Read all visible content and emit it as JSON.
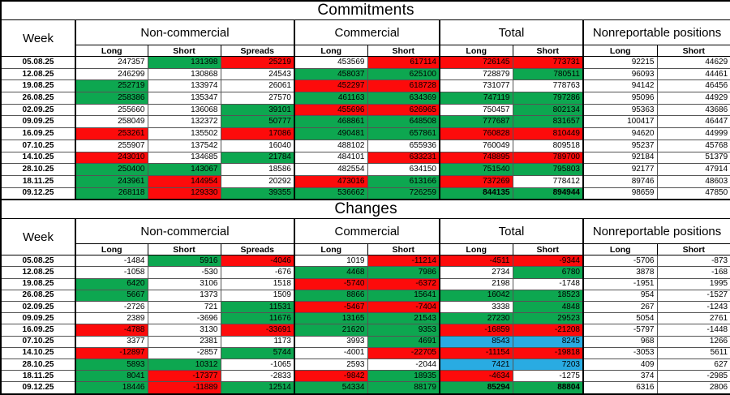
{
  "colors": {
    "green": "#0DA750",
    "red": "#FD0B0B",
    "blue": "#29ABE2",
    "border": "#000000"
  },
  "tables": [
    {
      "title": "Commitments",
      "week_header": "Week",
      "groups": [
        {
          "label": "Non-commercial",
          "cols": [
            "Long",
            "Short",
            "Spreads"
          ]
        },
        {
          "label": "Commercial",
          "cols": [
            "Long",
            "Short"
          ]
        },
        {
          "label": "Total",
          "cols": [
            "Long",
            "Short"
          ]
        },
        {
          "label": "Nonreportable positions",
          "cols": [
            "Long",
            "Short"
          ]
        }
      ],
      "rows": [
        {
          "week": "05.08.25",
          "cells": [
            {
              "v": "247357"
            },
            {
              "v": "131398",
              "bg": "green"
            },
            {
              "v": "25219",
              "bg": "red"
            },
            {
              "v": "453569"
            },
            {
              "v": "617114",
              "bg": "red"
            },
            {
              "v": "726145",
              "bg": "red"
            },
            {
              "v": "773731",
              "bg": "red"
            },
            {
              "v": "92215"
            },
            {
              "v": "44629"
            }
          ]
        },
        {
          "week": "12.08.25",
          "cells": [
            {
              "v": "246299"
            },
            {
              "v": "130868"
            },
            {
              "v": "24543"
            },
            {
              "v": "458037",
              "bg": "green"
            },
            {
              "v": "625100",
              "bg": "green"
            },
            {
              "v": "728879"
            },
            {
              "v": "780511",
              "bg": "green"
            },
            {
              "v": "96093"
            },
            {
              "v": "44461"
            }
          ]
        },
        {
          "week": "19.08.25",
          "cells": [
            {
              "v": "252719",
              "bg": "green"
            },
            {
              "v": "133974"
            },
            {
              "v": "26061"
            },
            {
              "v": "452297",
              "bg": "red"
            },
            {
              "v": "618728",
              "bg": "red"
            },
            {
              "v": "731077"
            },
            {
              "v": "778763"
            },
            {
              "v": "94142"
            },
            {
              "v": "46456"
            }
          ]
        },
        {
          "week": "26.08.25",
          "cells": [
            {
              "v": "258386",
              "bg": "green"
            },
            {
              "v": "135347"
            },
            {
              "v": "27570"
            },
            {
              "v": "461163",
              "bg": "green"
            },
            {
              "v": "634369",
              "bg": "green"
            },
            {
              "v": "747119",
              "bg": "green"
            },
            {
              "v": "797286",
              "bg": "green"
            },
            {
              "v": "95096"
            },
            {
              "v": "44929"
            }
          ]
        },
        {
          "week": "02.09.25",
          "cells": [
            {
              "v": "255660"
            },
            {
              "v": "136068"
            },
            {
              "v": "39101",
              "bg": "green"
            },
            {
              "v": "455696",
              "bg": "red"
            },
            {
              "v": "626965",
              "bg": "red"
            },
            {
              "v": "750457"
            },
            {
              "v": "802134",
              "bg": "green"
            },
            {
              "v": "95363"
            },
            {
              "v": "43686"
            }
          ]
        },
        {
          "week": "09.09.25",
          "cells": [
            {
              "v": "258049"
            },
            {
              "v": "132372"
            },
            {
              "v": "50777",
              "bg": "green"
            },
            {
              "v": "468861",
              "bg": "green"
            },
            {
              "v": "648508",
              "bg": "green"
            },
            {
              "v": "777687",
              "bg": "green"
            },
            {
              "v": "831657",
              "bg": "green"
            },
            {
              "v": "100417"
            },
            {
              "v": "46447"
            }
          ]
        },
        {
          "week": "16.09.25",
          "cells": [
            {
              "v": "253261",
              "bg": "red"
            },
            {
              "v": "135502"
            },
            {
              "v": "17086",
              "bg": "red"
            },
            {
              "v": "490481",
              "bg": "green"
            },
            {
              "v": "657861",
              "bg": "green"
            },
            {
              "v": "760828",
              "bg": "red"
            },
            {
              "v": "810449",
              "bg": "red"
            },
            {
              "v": "94620"
            },
            {
              "v": "44999"
            }
          ]
        },
        {
          "week": "07.10.25",
          "cells": [
            {
              "v": "255907"
            },
            {
              "v": "137542"
            },
            {
              "v": "16040"
            },
            {
              "v": "488102"
            },
            {
              "v": "655936"
            },
            {
              "v": "760049"
            },
            {
              "v": "809518"
            },
            {
              "v": "95237"
            },
            {
              "v": "45768"
            }
          ]
        },
        {
          "week": "14.10.25",
          "cells": [
            {
              "v": "243010",
              "bg": "red"
            },
            {
              "v": "134685"
            },
            {
              "v": "21784",
              "bg": "green"
            },
            {
              "v": "484101"
            },
            {
              "v": "633231",
              "bg": "red"
            },
            {
              "v": "748895",
              "bg": "red"
            },
            {
              "v": "789700",
              "bg": "red"
            },
            {
              "v": "92184"
            },
            {
              "v": "51379"
            }
          ]
        },
        {
          "week": "28.10.25",
          "cells": [
            {
              "v": "250400",
              "bg": "green"
            },
            {
              "v": "143067",
              "bg": "green"
            },
            {
              "v": "18586"
            },
            {
              "v": "482554"
            },
            {
              "v": "634150"
            },
            {
              "v": "751540",
              "bg": "green"
            },
            {
              "v": "795803",
              "bg": "green"
            },
            {
              "v": "92177"
            },
            {
              "v": "47914"
            }
          ]
        },
        {
          "week": "18.11.25",
          "cells": [
            {
              "v": "243961",
              "bg": "green"
            },
            {
              "v": "144954",
              "bg": "red"
            },
            {
              "v": "20292"
            },
            {
              "v": "473016",
              "bg": "red"
            },
            {
              "v": "613166",
              "bg": "green"
            },
            {
              "v": "737269",
              "bg": "red"
            },
            {
              "v": "778412"
            },
            {
              "v": "89746"
            },
            {
              "v": "48603"
            }
          ]
        },
        {
          "week": "09.12.25",
          "cells": [
            {
              "v": "268118",
              "bg": "green"
            },
            {
              "v": "129330",
              "bg": "red"
            },
            {
              "v": "39355",
              "bg": "green"
            },
            {
              "v": "536662",
              "bg": "green"
            },
            {
              "v": "726259",
              "bg": "green"
            },
            {
              "v": "844135",
              "bg": "green",
              "bold": true
            },
            {
              "v": "894944",
              "bg": "green",
              "bold": true
            },
            {
              "v": "98659"
            },
            {
              "v": "47850"
            }
          ]
        }
      ]
    },
    {
      "title": "Changes",
      "week_header": "Week",
      "groups": [
        {
          "label": "Non-commercial",
          "cols": [
            "Long",
            "Short",
            "Spreads"
          ]
        },
        {
          "label": "Commercial",
          "cols": [
            "Long",
            "Short"
          ]
        },
        {
          "label": "Total",
          "cols": [
            "Long",
            "Short"
          ]
        },
        {
          "label": "Nonreportable positions",
          "cols": [
            "Long",
            "Short"
          ]
        }
      ],
      "rows": [
        {
          "week": "05.08.25",
          "cells": [
            {
              "v": "-1484"
            },
            {
              "v": "5916",
              "bg": "green"
            },
            {
              "v": "-4046",
              "bg": "red"
            },
            {
              "v": "1019"
            },
            {
              "v": "-11214",
              "bg": "red"
            },
            {
              "v": "-4511",
              "bg": "red"
            },
            {
              "v": "-9344",
              "bg": "red"
            },
            {
              "v": "-5706"
            },
            {
              "v": "-873"
            }
          ]
        },
        {
          "week": "12.08.25",
          "cells": [
            {
              "v": "-1058"
            },
            {
              "v": "-530"
            },
            {
              "v": "-676"
            },
            {
              "v": "4468",
              "bg": "green"
            },
            {
              "v": "7986",
              "bg": "green"
            },
            {
              "v": "2734"
            },
            {
              "v": "6780",
              "bg": "green"
            },
            {
              "v": "3878"
            },
            {
              "v": "-168"
            }
          ]
        },
        {
          "week": "19.08.25",
          "cells": [
            {
              "v": "6420",
              "bg": "green"
            },
            {
              "v": "3106"
            },
            {
              "v": "1518"
            },
            {
              "v": "-5740",
              "bg": "red"
            },
            {
              "v": "-6372",
              "bg": "red"
            },
            {
              "v": "2198"
            },
            {
              "v": "-1748"
            },
            {
              "v": "-1951"
            },
            {
              "v": "1995"
            }
          ]
        },
        {
          "week": "26.08.25",
          "cells": [
            {
              "v": "5667",
              "bg": "green"
            },
            {
              "v": "1373"
            },
            {
              "v": "1509"
            },
            {
              "v": "8866",
              "bg": "green"
            },
            {
              "v": "15641",
              "bg": "green"
            },
            {
              "v": "16042",
              "bg": "green"
            },
            {
              "v": "18523",
              "bg": "green"
            },
            {
              "v": "954"
            },
            {
              "v": "-1527"
            }
          ]
        },
        {
          "week": "02.09.25",
          "cells": [
            {
              "v": "-2726"
            },
            {
              "v": "721"
            },
            {
              "v": "11531",
              "bg": "green"
            },
            {
              "v": "-5467",
              "bg": "red"
            },
            {
              "v": "-7404",
              "bg": "red"
            },
            {
              "v": "3338"
            },
            {
              "v": "4848",
              "bg": "green"
            },
            {
              "v": "267"
            },
            {
              "v": "-1243"
            }
          ]
        },
        {
          "week": "09.09.25",
          "cells": [
            {
              "v": "2389"
            },
            {
              "v": "-3696"
            },
            {
              "v": "11676",
              "bg": "green"
            },
            {
              "v": "13165",
              "bg": "green"
            },
            {
              "v": "21543",
              "bg": "green"
            },
            {
              "v": "27230",
              "bg": "green"
            },
            {
              "v": "29523",
              "bg": "green"
            },
            {
              "v": "5054"
            },
            {
              "v": "2761"
            }
          ]
        },
        {
          "week": "16.09.25",
          "cells": [
            {
              "v": "-4788",
              "bg": "red"
            },
            {
              "v": "3130"
            },
            {
              "v": "-33691",
              "bg": "red"
            },
            {
              "v": "21620",
              "bg": "green"
            },
            {
              "v": "9353",
              "bg": "green"
            },
            {
              "v": "-16859",
              "bg": "red"
            },
            {
              "v": "-21208",
              "bg": "red"
            },
            {
              "v": "-5797"
            },
            {
              "v": "-1448"
            }
          ]
        },
        {
          "week": "07.10.25",
          "cells": [
            {
              "v": "3377"
            },
            {
              "v": "2381"
            },
            {
              "v": "1173"
            },
            {
              "v": "3993"
            },
            {
              "v": "4691",
              "bg": "green"
            },
            {
              "v": "8543",
              "bg": "blue"
            },
            {
              "v": "8245",
              "bg": "blue"
            },
            {
              "v": "968"
            },
            {
              "v": "1266"
            }
          ]
        },
        {
          "week": "14.10.25",
          "cells": [
            {
              "v": "-12897",
              "bg": "red"
            },
            {
              "v": "-2857"
            },
            {
              "v": "5744",
              "bg": "green"
            },
            {
              "v": "-4001"
            },
            {
              "v": "-22705",
              "bg": "red"
            },
            {
              "v": "-11154",
              "bg": "red"
            },
            {
              "v": "-19818",
              "bg": "red"
            },
            {
              "v": "-3053"
            },
            {
              "v": "5611"
            }
          ]
        },
        {
          "week": "28.10.25",
          "cells": [
            {
              "v": "5893",
              "bg": "green"
            },
            {
              "v": "10312",
              "bg": "green"
            },
            {
              "v": "-1065"
            },
            {
              "v": "2593"
            },
            {
              "v": "-2044"
            },
            {
              "v": "7421",
              "bg": "blue"
            },
            {
              "v": "7203",
              "bg": "blue"
            },
            {
              "v": "409"
            },
            {
              "v": "627"
            }
          ]
        },
        {
          "week": "18.11.25",
          "cells": [
            {
              "v": "8041",
              "bg": "green"
            },
            {
              "v": "-17377",
              "bg": "red"
            },
            {
              "v": "-2833"
            },
            {
              "v": "-9842",
              "bg": "red"
            },
            {
              "v": "18935",
              "bg": "green"
            },
            {
              "v": "-4634",
              "bg": "red"
            },
            {
              "v": "-1275"
            },
            {
              "v": "374"
            },
            {
              "v": "-2985"
            }
          ]
        },
        {
          "week": "09.12.25",
          "cells": [
            {
              "v": "18446",
              "bg": "green"
            },
            {
              "v": "-11889",
              "bg": "red"
            },
            {
              "v": "12514",
              "bg": "green"
            },
            {
              "v": "54334",
              "bg": "green"
            },
            {
              "v": "88179",
              "bg": "green"
            },
            {
              "v": "85294",
              "bg": "green",
              "bold": true
            },
            {
              "v": "88804",
              "bg": "green",
              "bold": true
            },
            {
              "v": "6316"
            },
            {
              "v": "2806"
            }
          ]
        }
      ]
    }
  ]
}
